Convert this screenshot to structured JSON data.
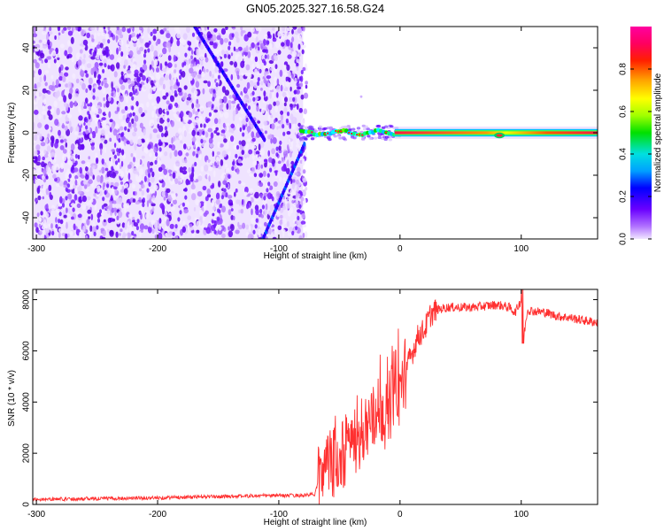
{
  "title": "GN05.2025.327.16.58.G24",
  "chart_data": [
    {
      "type": "heatmap",
      "title": "GN05.2025.327.16.58.G24",
      "xlabel": "Height of straight line (km)",
      "ylabel": "Frequency (Hz)",
      "xlim": [
        -303,
        163
      ],
      "ylim": [
        -50,
        50
      ],
      "x_ticks": [
        -300,
        -200,
        -100,
        0,
        100
      ],
      "y_ticks": [
        -40,
        -20,
        0,
        20,
        40
      ],
      "noise_region_x": [
        -303,
        -80
      ],
      "transition_x": [
        -80,
        0
      ],
      "tone_frequency_hz": 0,
      "notch_at_x": 82,
      "colorbar": {
        "label": "Normalized spectral amplitude",
        "range": [
          0,
          1
        ],
        "ticks": [
          "0.0",
          "0.2",
          "0.4",
          "0.6",
          "0.8"
        ],
        "colors": [
          "#f0e6ff",
          "#b070ff",
          "#6a00ff",
          "#0000ff",
          "#00a0ff",
          "#00e0e0",
          "#00e000",
          "#a0ff00",
          "#ffff00",
          "#ffa000",
          "#ff2000",
          "#ff0060",
          "#ff00a0"
        ]
      }
    },
    {
      "type": "line",
      "xlabel": "Height of straight line (km)",
      "ylabel": "SNR (10 * v/v)",
      "xlim": [
        -303,
        163
      ],
      "ylim": [
        0,
        8400
      ],
      "x_ticks": [
        -300,
        -200,
        -100,
        0,
        100
      ],
      "y_ticks": [
        0,
        2000,
        4000,
        6000,
        8000
      ],
      "color": "#ff3030",
      "series": [
        {
          "name": "SNR",
          "x": [
            -303,
            -250,
            -200,
            -150,
            -100,
            -80,
            -70,
            -65,
            -60,
            -55,
            -50,
            -45,
            -40,
            -35,
            -30,
            -25,
            -20,
            -15,
            -10,
            -5,
            0,
            5,
            10,
            15,
            20,
            25,
            30,
            40,
            50,
            60,
            70,
            80,
            90,
            95,
            100,
            102,
            105,
            110,
            120,
            130,
            140,
            150,
            163
          ],
          "y": [
            200,
            230,
            260,
            310,
            350,
            350,
            400,
            1500,
            1400,
            1700,
            1500,
            2000,
            2500,
            2600,
            3000,
            3200,
            3300,
            3800,
            3500,
            4600,
            4500,
            5300,
            5900,
            6600,
            6800,
            7400,
            7600,
            7700,
            7700,
            7700,
            7750,
            7800,
            7700,
            7500,
            8000,
            6500,
            7600,
            7550,
            7500,
            7350,
            7300,
            7200,
            7100
          ]
        }
      ]
    }
  ]
}
